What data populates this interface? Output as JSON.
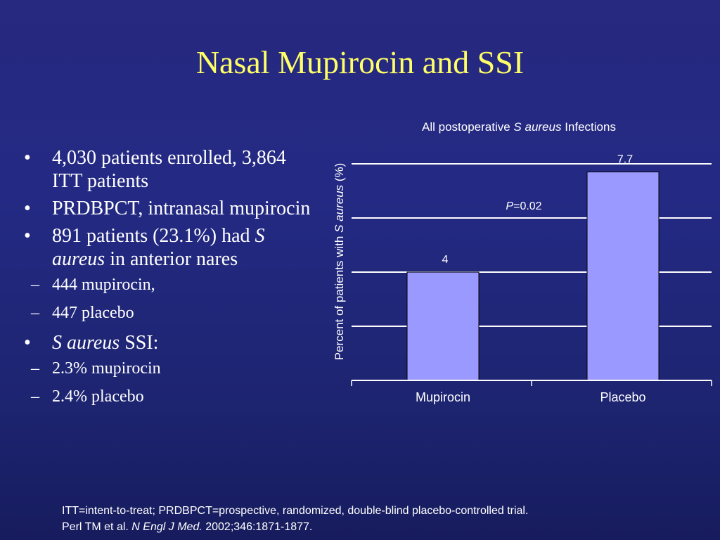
{
  "slide": {
    "title": "Nasal Mupirocin and SSI",
    "bullets": [
      {
        "text": "4,030 patients enrolled, 3,864 ITT patients"
      },
      {
        "text": "PRDBPCT, intranasal mupirocin"
      },
      {
        "prefix": "891 patients (23.1%) had ",
        "italic": "S aureus",
        "suffix": " in anterior nares",
        "sub": [
          "444 mupirocin,",
          "447 placebo"
        ]
      },
      {
        "prefix": "",
        "italic": "S aureus",
        "suffix": " SSI:",
        "sub": [
          "2.3% mupirocin",
          "2.4% placebo"
        ]
      }
    ],
    "footnote": {
      "line1": "ITT=intent-to-treat; PRDBPCT=prospective, randomized, double-blind placebo-controlled trial.",
      "line2_prefix": "Perl TM et al. ",
      "line2_italic": "N Engl J Med.",
      "line2_suffix": " 2002;346:1871-1877."
    }
  },
  "chart_data": {
    "type": "bar",
    "title_prefix": "All postoperative ",
    "title_italic": "S aureus",
    "title_suffix": " Infections",
    "ylabel_prefix": "Percent of patients with ",
    "ylabel_italic": "S aureus",
    "ylabel_suffix": "  (%)",
    "categories": [
      "Mupirocin",
      "Placebo"
    ],
    "values": [
      4,
      7.7
    ],
    "data_labels": [
      "4",
      "7.7"
    ],
    "ylim": [
      0,
      8
    ],
    "y_gridlines": [
      2,
      4,
      6,
      8
    ],
    "grid": true,
    "annotation_italic": "P",
    "annotation_text": "=0.02",
    "bar_color": "#9999ff",
    "axis_color": "#ffffff"
  }
}
